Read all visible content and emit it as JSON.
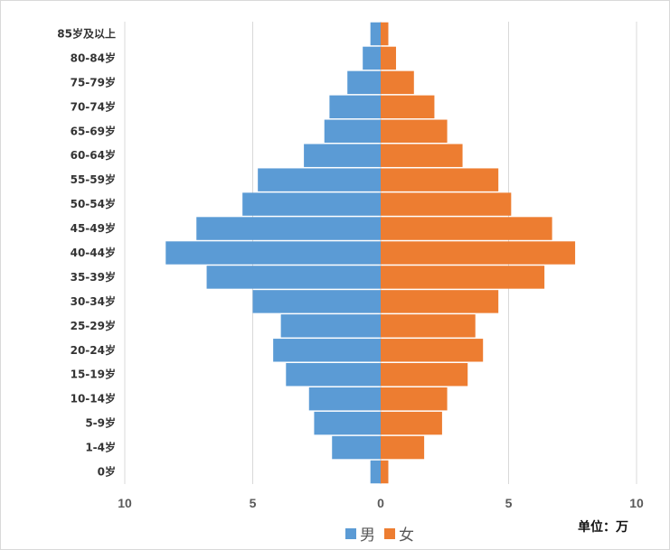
{
  "chart_data": {
    "type": "bar",
    "orientation": "horizontal",
    "categories": [
      "85岁及以上",
      "80-84岁",
      "75-79岁",
      "70-74岁",
      "65-69岁",
      "60-64岁",
      "55-59岁",
      "50-54岁",
      "45-49岁",
      "40-44岁",
      "35-39岁",
      "30-34岁",
      "25-29岁",
      "20-24岁",
      "15-19岁",
      "10-14岁",
      "5-9岁",
      "1-4岁",
      "0岁"
    ],
    "series": [
      {
        "name": "男",
        "color": "#5b9bd5",
        "values": [
          0.4,
          0.7,
          1.3,
          2.0,
          2.2,
          3.0,
          4.8,
          5.4,
          7.2,
          8.4,
          6.8,
          5.0,
          3.9,
          4.2,
          3.7,
          2.8,
          2.6,
          1.9,
          0.4
        ]
      },
      {
        "name": "女",
        "color": "#ed7d31",
        "values": [
          0.3,
          0.6,
          1.3,
          2.1,
          2.6,
          3.2,
          4.6,
          5.1,
          6.7,
          7.6,
          6.4,
          4.6,
          3.7,
          4.0,
          3.4,
          2.6,
          2.4,
          1.7,
          0.3
        ]
      }
    ],
    "xticks": [
      "10",
      "5",
      "0",
      "5",
      "10"
    ],
    "xlim": [
      -10,
      10
    ],
    "grid": true,
    "legend_position": "bottom",
    "unit_label": "单位：万"
  }
}
